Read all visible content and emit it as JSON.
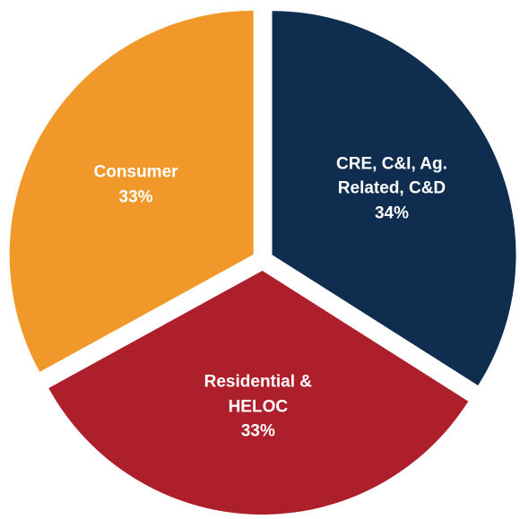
{
  "chart_data": {
    "type": "pie",
    "categories": [
      "CRE, C&I, Ag. Related, C&D",
      "Residential & HELOC",
      "Consumer"
    ],
    "values": [
      34,
      33,
      33
    ],
    "value_labels": [
      "34%",
      "33%",
      "33%"
    ],
    "colors": [
      "#0e2d4f",
      "#ae1f2c",
      "#f0992a"
    ],
    "start_angle": 0,
    "direction": "clockwise",
    "exploded": true
  }
}
